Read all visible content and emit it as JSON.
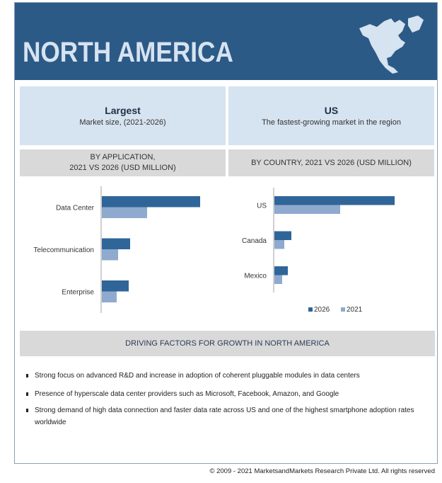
{
  "header": {
    "title": "NORTH AMERICA",
    "map_icon": "north-america-map-icon"
  },
  "highlights": [
    {
      "heading": "Largest",
      "subtext": "Market size, (2021-2026)"
    },
    {
      "heading": "US",
      "subtext": "The fastest-growing market in the region"
    }
  ],
  "colors": {
    "header": "#2c5a87",
    "series_2026": "#2f6599",
    "series_2021": "#8faace"
  },
  "chart_data": [
    {
      "type": "bar",
      "orientation": "horizontal",
      "title_line1": "BY APPLICATION,",
      "title_line2": "2021 VS 2026 (USD MILLION)",
      "categories": [
        "Data Center",
        "Telecommunication",
        "Enterprise"
      ],
      "series": [
        {
          "name": "2026",
          "values": [
            139,
            40,
            38
          ]
        },
        {
          "name": "2021",
          "values": [
            64,
            23,
            21
          ]
        }
      ],
      "note": ""
    },
    {
      "type": "bar",
      "orientation": "horizontal",
      "title": "BY COUNTRY, 2021 VS 2026  (USD MILLION)",
      "categories": [
        "US",
        "Canada",
        "Mexico"
      ],
      "series": [
        {
          "name": "2026",
          "values": [
            170,
            24,
            19
          ]
        },
        {
          "name": "2021",
          "values": [
            93,
            14,
            11
          ]
        }
      ],
      "legend": "bottom"
    }
  ],
  "driving": {
    "title": "DRIVING FACTORS FOR GROWTH IN  NORTH AMERICA",
    "items": [
      "Strong focus on advanced R&D and  increase in adoption of coherent pluggable modules in data centers",
      "Presence of hyperscale data center providers such as Microsoft, Facebook, Amazon, and Google",
      "Strong demand of high data connection and faster data rate across US and one of the highest smartphone adoption rates worldwide"
    ]
  },
  "footer": "© 2009 - 2021 MarketsandMarkets Research Private Ltd. All rights reserved"
}
